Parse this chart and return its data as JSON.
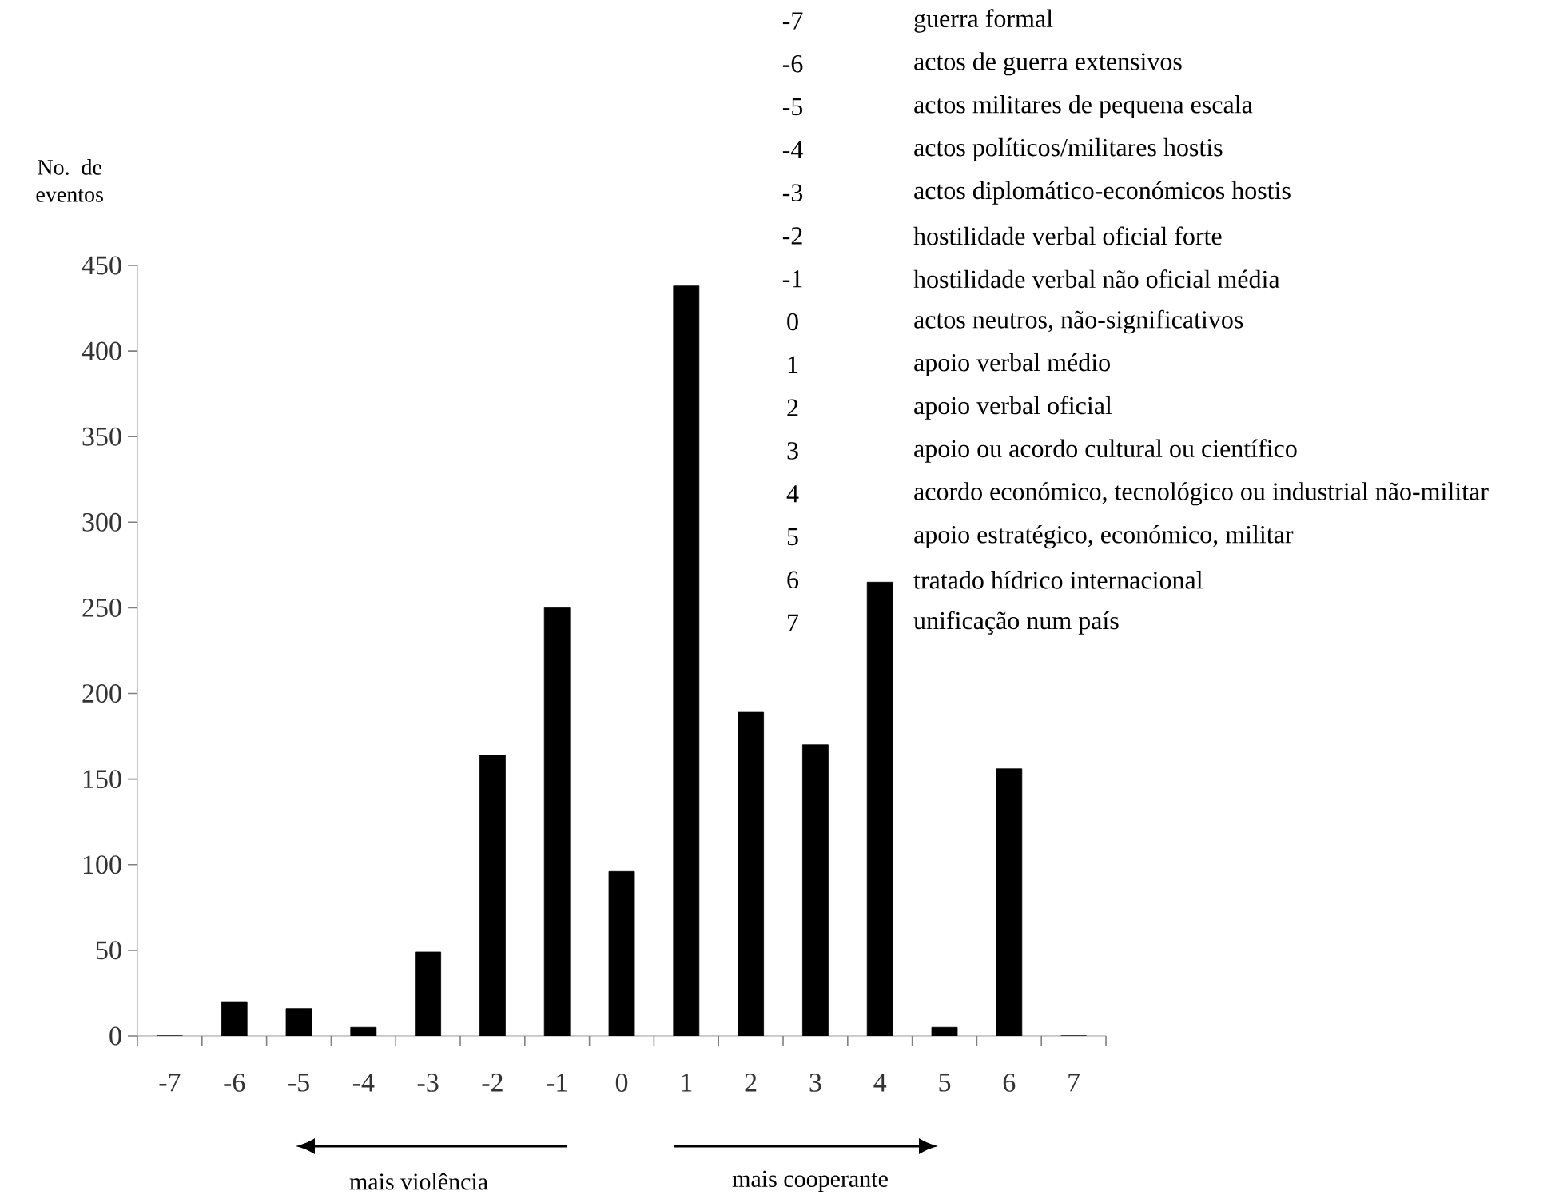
{
  "chart_data": {
    "type": "bar",
    "ylabel": "No. de eventos",
    "categories": [
      "-7",
      "-6",
      "-5",
      "-4",
      "-3",
      "-2",
      "-1",
      "0",
      "1",
      "2",
      "3",
      "4",
      "5",
      "6",
      "7"
    ],
    "values": [
      0,
      20,
      16,
      5,
      49,
      164,
      250,
      96,
      438,
      189,
      170,
      265,
      5,
      156,
      0
    ],
    "color": "#000000",
    "ylim": [
      0,
      450
    ],
    "yticks": [
      0,
      50,
      100,
      150,
      200,
      250,
      300,
      350,
      400,
      450
    ],
    "grid": false,
    "annotations": [
      "-7",
      "guerra formal",
      "-6",
      "actos de guerra extensivos",
      "-5",
      "actos militares de pequena escala",
      "-4",
      "actos políticos/militares hostis",
      "-3",
      "actos diplomático-económicos hostis",
      "-2",
      "hostilidade verbal oficial forte",
      "-1",
      "hostilidade verbal não oficial média",
      "0",
      "actos neutros, não-significativos",
      "1",
      "apoio verbal médio",
      "2",
      "apoio verbal oficial",
      "3",
      "apoio ou acordo cultural ou científico",
      "4",
      "acordo económico, tecnológico ou industrial não-militar",
      "5",
      "apoio estratégico, económico, militar",
      "6",
      "tratado hídrico internacional",
      "7",
      "unificação num país",
      "mais violência",
      "mais cooperante"
    ]
  }
}
